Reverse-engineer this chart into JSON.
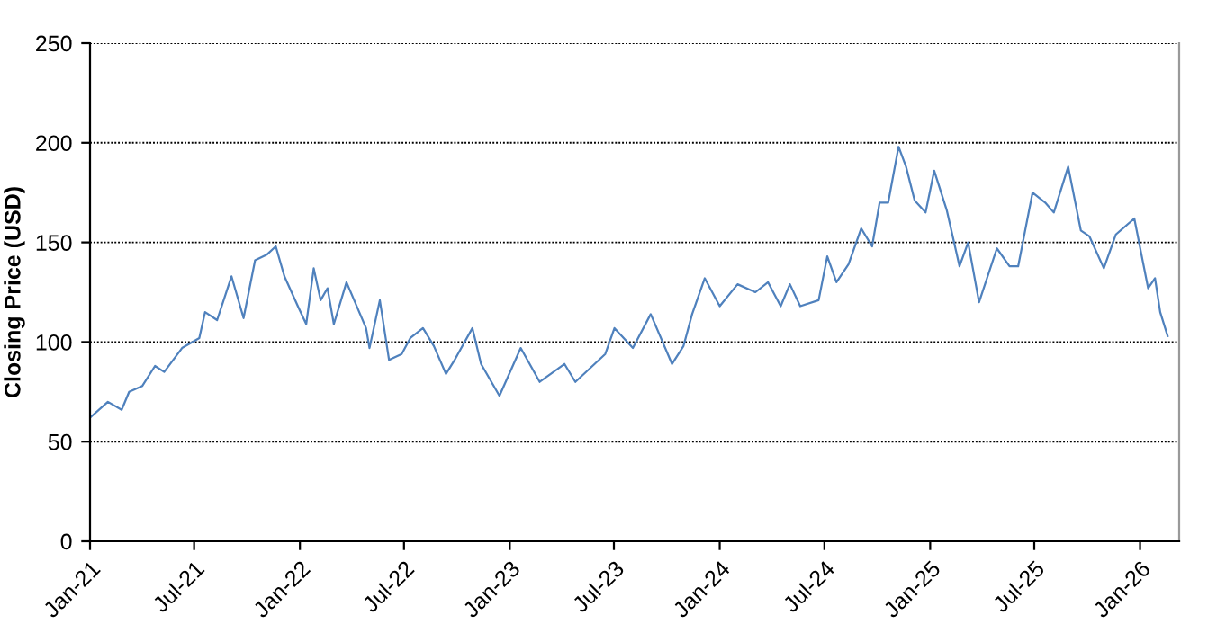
{
  "chart_data": {
    "type": "line",
    "ylabel": "Closing Price (USD)",
    "ylim": [
      0,
      250
    ],
    "yticks": [
      0,
      50,
      100,
      150,
      200,
      250
    ],
    "xlim": [
      "2021-01-01",
      "2026-03-10"
    ],
    "xticks": [
      {
        "value": "2021-01-01",
        "label": "Jan-21"
      },
      {
        "value": "2021-07-01",
        "label": "Jul-21"
      },
      {
        "value": "2022-01-01",
        "label": "Jan-22"
      },
      {
        "value": "2022-07-01",
        "label": "Jul-22"
      },
      {
        "value": "2023-01-01",
        "label": "Jan-23"
      },
      {
        "value": "2023-07-01",
        "label": "Jul-23"
      },
      {
        "value": "2024-01-01",
        "label": "Jan-24"
      },
      {
        "value": "2024-07-01",
        "label": "Jul-24"
      },
      {
        "value": "2025-01-01",
        "label": "Jan-25"
      },
      {
        "value": "2025-07-01",
        "label": "Jul-25"
      },
      {
        "value": "2026-01-01",
        "label": "Jan-26"
      }
    ],
    "grid": "y",
    "marker": "none",
    "line_style": "solid",
    "legend": false,
    "series": [
      {
        "color": "#4f81bd",
        "x": [
          "2021-01-01",
          "2021-02-01",
          "2021-02-25",
          "2021-03-10",
          "2021-04-02",
          "2021-04-24",
          "2021-05-10",
          "2021-06-10",
          "2021-07-10",
          "2021-07-20",
          "2021-08-10",
          "2021-09-04",
          "2021-09-25",
          "2021-10-15",
          "2021-11-05",
          "2021-11-20",
          "2021-12-05",
          "2021-12-30",
          "2022-01-12",
          "2022-01-25",
          "2022-02-06",
          "2022-02-18",
          "2022-03-01",
          "2022-03-23",
          "2022-04-26",
          "2022-05-02",
          "2022-05-20",
          "2022-06-05",
          "2022-06-27",
          "2022-07-12",
          "2022-08-03",
          "2022-08-22",
          "2022-09-12",
          "2022-09-27",
          "2022-10-28",
          "2022-11-12",
          "2022-12-14",
          "2023-01-20",
          "2023-02-22",
          "2023-04-06",
          "2023-04-25",
          "2023-06-16",
          "2023-07-02",
          "2023-08-03",
          "2023-09-03",
          "2023-10-10",
          "2023-10-30",
          "2023-11-14",
          "2023-12-06",
          "2024-01-01",
          "2024-02-01",
          "2024-03-03",
          "2024-03-25",
          "2024-04-16",
          "2024-05-02",
          "2024-05-20",
          "2024-06-21",
          "2024-07-06",
          "2024-07-22",
          "2024-08-12",
          "2024-09-03",
          "2024-09-22",
          "2024-10-05",
          "2024-10-20",
          "2024-11-07",
          "2024-11-20",
          "2024-12-05",
          "2024-12-24",
          "2025-01-08",
          "2025-01-30",
          "2025-02-21",
          "2025-03-08",
          "2025-03-27",
          "2025-04-27",
          "2025-05-19",
          "2025-06-03",
          "2025-06-28",
          "2025-07-20",
          "2025-08-04",
          "2025-08-29",
          "2025-09-20",
          "2025-10-05",
          "2025-10-30",
          "2025-11-20",
          "2025-12-22",
          "2026-01-15",
          "2026-01-27",
          "2026-02-05",
          "2026-02-18"
        ],
        "values": [
          62,
          70,
          66,
          75,
          78,
          88,
          85,
          97,
          102,
          115,
          111,
          133,
          112,
          141,
          144,
          148,
          133,
          117,
          109,
          137,
          121,
          127,
          109,
          130,
          107,
          97,
          121,
          91,
          94,
          102,
          107,
          98,
          84,
          91,
          107,
          89,
          73,
          97,
          80,
          89,
          80,
          94,
          107,
          97,
          114,
          89,
          98,
          114,
          132,
          118,
          129,
          125,
          130,
          118,
          129,
          118,
          121,
          143,
          130,
          139,
          157,
          148,
          170,
          170,
          198,
          188,
          171,
          165,
          186,
          166,
          138,
          150,
          120,
          147,
          138,
          138,
          175,
          170,
          165,
          188,
          156,
          153,
          137,
          154,
          162,
          127,
          132,
          115,
          103
        ]
      }
    ]
  }
}
